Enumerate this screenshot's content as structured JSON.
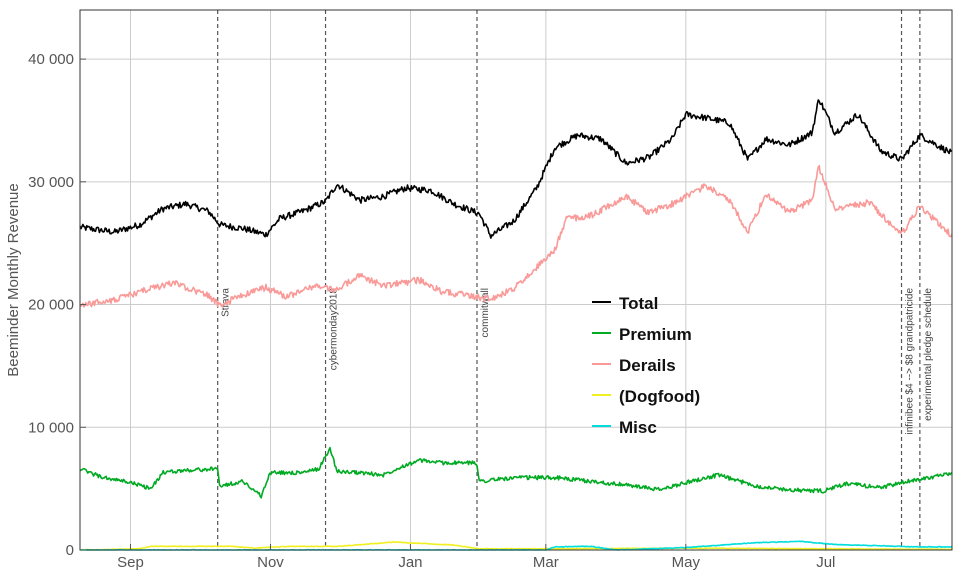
{
  "chart_data": {
    "type": "line",
    "title": "",
    "xlabel": "",
    "ylabel": "Beeminder Monthly Revenue",
    "xlim": [
      "2018-08-10",
      "2019-08-25"
    ],
    "ylim": [
      0,
      44000
    ],
    "y_ticks": [
      0,
      10000,
      20000,
      30000,
      40000
    ],
    "y_tick_labels": [
      "0",
      "10 000",
      "20 000",
      "30 000",
      "40 000"
    ],
    "x_ticks": [
      {
        "date": "2018-09-01",
        "label": "Sep"
      },
      {
        "date": "2018-11-01",
        "label": "Nov"
      },
      {
        "date": "2019-01-01",
        "label": "Jan"
      },
      {
        "date": "2019-03-01",
        "label": "Mar"
      },
      {
        "date": "2019-05-01",
        "label": "May"
      },
      {
        "date": "2019-07-01",
        "label": "Jul"
      }
    ],
    "grid": true,
    "legend_position": "center-right",
    "annotations": [
      {
        "date": "2018-10-09",
        "label": "Strava"
      },
      {
        "date": "2018-11-25",
        "label": "cybermonday2018"
      },
      {
        "date": "2019-01-30",
        "label": "commitwall"
      },
      {
        "date": "2019-08-03",
        "label": "infinibee $4 --> $8 grandpatricide"
      },
      {
        "date": "2019-08-11",
        "label": "experimental pledge schedule"
      }
    ],
    "series": [
      {
        "name": "Total",
        "color": "#000000",
        "points": [
          [
            "2018-08-10",
            26300
          ],
          [
            "2018-08-25",
            25900
          ],
          [
            "2018-09-05",
            26500
          ],
          [
            "2018-09-15",
            27800
          ],
          [
            "2018-09-25",
            28200
          ],
          [
            "2018-10-05",
            27600
          ],
          [
            "2018-10-10",
            26500
          ],
          [
            "2018-10-20",
            26200
          ],
          [
            "2018-10-30",
            25700
          ],
          [
            "2018-11-05",
            27000
          ],
          [
            "2018-11-15",
            27600
          ],
          [
            "2018-11-25",
            28400
          ],
          [
            "2018-11-30",
            29800
          ],
          [
            "2018-12-10",
            28500
          ],
          [
            "2018-12-20",
            28800
          ],
          [
            "2018-12-30",
            29500
          ],
          [
            "2019-01-10",
            29300
          ],
          [
            "2019-01-20",
            28200
          ],
          [
            "2019-01-31",
            27400
          ],
          [
            "2019-02-05",
            25600
          ],
          [
            "2019-02-15",
            26800
          ],
          [
            "2019-02-25",
            29500
          ],
          [
            "2019-03-05",
            32800
          ],
          [
            "2019-03-15",
            33800
          ],
          [
            "2019-03-25",
            33500
          ],
          [
            "2019-04-05",
            31500
          ],
          [
            "2019-04-15",
            32000
          ],
          [
            "2019-04-25",
            33500
          ],
          [
            "2019-05-01",
            35500
          ],
          [
            "2019-05-10",
            35200
          ],
          [
            "2019-05-20",
            34800
          ],
          [
            "2019-05-28",
            31800
          ],
          [
            "2019-06-05",
            33500
          ],
          [
            "2019-06-15",
            33000
          ],
          [
            "2019-06-25",
            34000
          ],
          [
            "2019-06-28",
            36800
          ],
          [
            "2019-07-05",
            34000
          ],
          [
            "2019-07-15",
            35500
          ],
          [
            "2019-07-25",
            32500
          ],
          [
            "2019-08-03",
            31800
          ],
          [
            "2019-08-11",
            33800
          ],
          [
            "2019-08-25",
            32300
          ]
        ]
      },
      {
        "name": "Premium",
        "color": "#00aa22",
        "points": [
          [
            "2018-08-10",
            6600
          ],
          [
            "2018-08-20",
            5900
          ],
          [
            "2018-09-01",
            5500
          ],
          [
            "2018-09-10",
            5000
          ],
          [
            "2018-09-15",
            6300
          ],
          [
            "2018-09-25",
            6500
          ],
          [
            "2018-10-09",
            6600
          ],
          [
            "2018-10-10",
            5200
          ],
          [
            "2018-10-20",
            5600
          ],
          [
            "2018-10-28",
            4400
          ],
          [
            "2018-11-01",
            6300
          ],
          [
            "2018-11-15",
            6300
          ],
          [
            "2018-11-22",
            6600
          ],
          [
            "2018-11-27",
            8300
          ],
          [
            "2018-11-30",
            6400
          ],
          [
            "2018-12-10",
            6300
          ],
          [
            "2018-12-20",
            6100
          ],
          [
            "2018-12-28",
            6800
          ],
          [
            "2019-01-05",
            7300
          ],
          [
            "2019-01-15",
            7100
          ],
          [
            "2019-01-30",
            7100
          ],
          [
            "2019-01-31",
            5600
          ],
          [
            "2019-02-10",
            5800
          ],
          [
            "2019-02-20",
            5900
          ],
          [
            "2019-03-05",
            5900
          ],
          [
            "2019-03-20",
            5600
          ],
          [
            "2019-04-05",
            5300
          ],
          [
            "2019-04-20",
            4900
          ],
          [
            "2019-05-01",
            5500
          ],
          [
            "2019-05-15",
            6100
          ],
          [
            "2019-06-01",
            5200
          ],
          [
            "2019-06-15",
            4900
          ],
          [
            "2019-06-30",
            4800
          ],
          [
            "2019-07-10",
            5400
          ],
          [
            "2019-07-25",
            5100
          ],
          [
            "2019-08-11",
            5800
          ],
          [
            "2019-08-25",
            6200
          ]
        ]
      },
      {
        "name": "Derails",
        "color": "#f99a98",
        "points": [
          [
            "2018-08-10",
            19900
          ],
          [
            "2018-08-25",
            20400
          ],
          [
            "2018-09-10",
            21300
          ],
          [
            "2018-09-20",
            21800
          ],
          [
            "2018-10-05",
            20700
          ],
          [
            "2018-10-10",
            19900
          ],
          [
            "2018-10-20",
            20800
          ],
          [
            "2018-10-30",
            21400
          ],
          [
            "2018-11-08",
            20600
          ],
          [
            "2018-11-20",
            21500
          ],
          [
            "2018-11-30",
            21200
          ],
          [
            "2018-12-10",
            22400
          ],
          [
            "2018-12-20",
            21500
          ],
          [
            "2019-01-05",
            22000
          ],
          [
            "2019-01-15",
            21000
          ],
          [
            "2019-01-25",
            20800
          ],
          [
            "2019-02-05",
            20400
          ],
          [
            "2019-02-15",
            21300
          ],
          [
            "2019-02-25",
            23000
          ],
          [
            "2019-03-05",
            24500
          ],
          [
            "2019-03-10",
            27000
          ],
          [
            "2019-03-20",
            27200
          ],
          [
            "2019-04-05",
            28800
          ],
          [
            "2019-04-15",
            27500
          ],
          [
            "2019-04-25",
            28200
          ],
          [
            "2019-05-10",
            29700
          ],
          [
            "2019-05-20",
            28500
          ],
          [
            "2019-05-28",
            25900
          ],
          [
            "2019-06-05",
            29000
          ],
          [
            "2019-06-15",
            27500
          ],
          [
            "2019-06-25",
            28500
          ],
          [
            "2019-06-28",
            31200
          ],
          [
            "2019-07-05",
            27800
          ],
          [
            "2019-07-20",
            28300
          ],
          [
            "2019-08-03",
            25700
          ],
          [
            "2019-08-11",
            28000
          ],
          [
            "2019-08-25",
            25600
          ]
        ]
      },
      {
        "name": "(Dogfood)",
        "color": "#f0f020",
        "points": [
          [
            "2018-08-10",
            0
          ],
          [
            "2018-09-05",
            100
          ],
          [
            "2018-09-10",
            300
          ],
          [
            "2018-10-15",
            300
          ],
          [
            "2018-10-25",
            150
          ],
          [
            "2018-11-10",
            300
          ],
          [
            "2018-12-01",
            300
          ],
          [
            "2018-12-25",
            650
          ],
          [
            "2019-01-20",
            400
          ],
          [
            "2019-01-31",
            100
          ],
          [
            "2019-03-01",
            100
          ],
          [
            "2019-05-01",
            150
          ],
          [
            "2019-08-25",
            50
          ]
        ]
      },
      {
        "name": "Misc",
        "color": "#00dddd",
        "points": [
          [
            "2018-08-10",
            0
          ],
          [
            "2019-03-01",
            0
          ],
          [
            "2019-03-05",
            250
          ],
          [
            "2019-03-20",
            300
          ],
          [
            "2019-04-01",
            0
          ],
          [
            "2019-05-01",
            200
          ],
          [
            "2019-06-01",
            600
          ],
          [
            "2019-06-20",
            700
          ],
          [
            "2019-07-05",
            450
          ],
          [
            "2019-08-11",
            250
          ],
          [
            "2019-08-25",
            250
          ]
        ]
      }
    ]
  }
}
